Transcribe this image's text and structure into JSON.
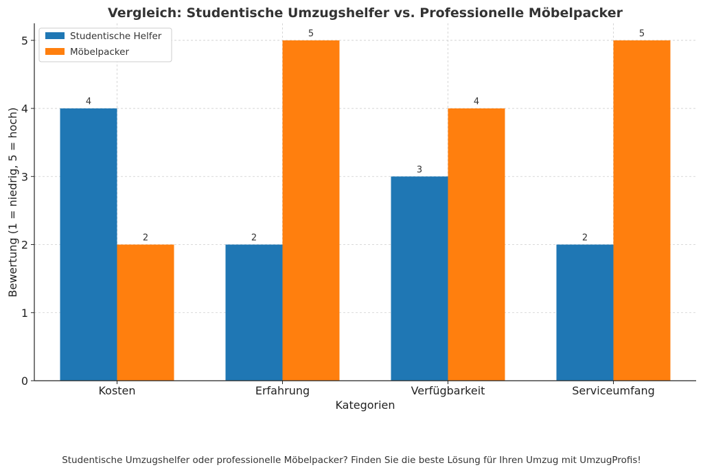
{
  "chart_data": {
    "type": "bar",
    "title": "Vergleich: Studentische Umzugshelfer vs. Professionelle Möbelpacker",
    "xlabel": "Kategorien",
    "ylabel": "Bewertung (1 = niedrig, 5 = hoch)",
    "categories": [
      "Kosten",
      "Erfahrung",
      "Verfügbarkeit",
      "Serviceumfang"
    ],
    "series": [
      {
        "name": "Studentische Helfer",
        "values": [
          4,
          2,
          3,
          2
        ],
        "color": "#1f77b4"
      },
      {
        "name": "Möbelpacker",
        "values": [
          2,
          5,
          4,
          5
        ],
        "color": "#ff7f0e"
      }
    ],
    "ylim": [
      0,
      5.25
    ],
    "yticks": [
      0,
      1,
      2,
      3,
      4,
      5
    ],
    "grid": true,
    "legend_position": "top-left"
  },
  "caption": "Studentische Umzugshelfer oder professionelle Möbelpacker? Finden Sie die beste Lösung für Ihren Umzug mit UmzugProfis!"
}
